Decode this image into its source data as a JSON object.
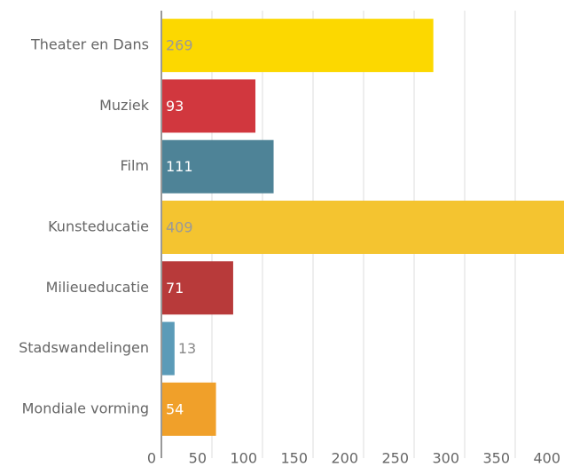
{
  "chart_data": {
    "type": "bar",
    "orientation": "horizontal",
    "categories": [
      "Theater en Dans",
      "Muziek",
      "Film",
      "Kunsteducatie",
      "Milieueducatie",
      "Stadswandelingen",
      "Mondiale vorming"
    ],
    "values": [
      269,
      93,
      111,
      409,
      71,
      13,
      54
    ],
    "colors": [
      "#fcd800",
      "#d1373e",
      "#4e8397",
      "#f4c430",
      "#b83a3a",
      "#5b9bb8",
      "#f0a02a"
    ],
    "xlim": [
      0,
      400
    ],
    "xticks": [
      0,
      50,
      100,
      150,
      200,
      250,
      300,
      350,
      400
    ],
    "grid": true
  }
}
